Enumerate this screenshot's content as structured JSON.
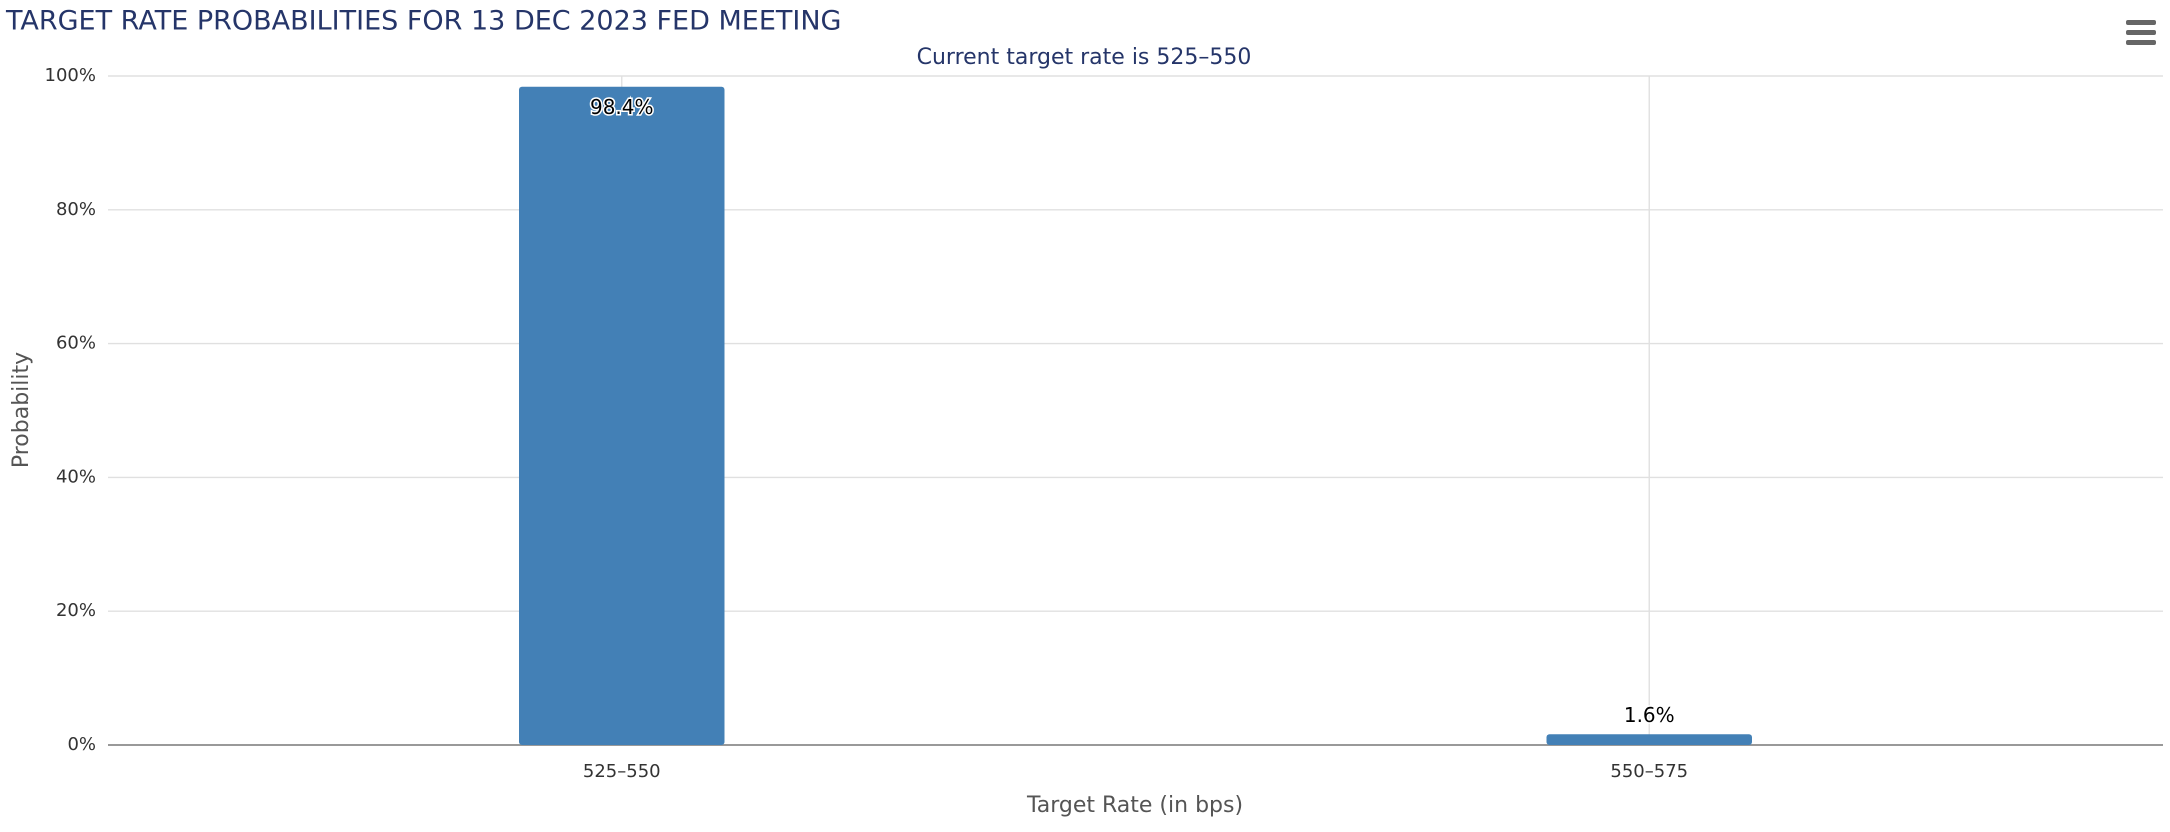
{
  "chart_data": {
    "type": "bar",
    "title": "TARGET RATE PROBABILITIES FOR 13 DEC 2023 FED MEETING",
    "subtitle": "Current target rate is 525–550",
    "x_label": "Target Rate (in bps)",
    "y_label": "Probability",
    "categories": [
      "525–550",
      "550–575"
    ],
    "values": [
      98.4,
      1.6
    ],
    "value_labels": [
      "98.4%",
      "1.6%"
    ],
    "color": "#4380b6",
    "ylim": [
      0,
      100
    ],
    "yticks": [
      {
        "value": 0,
        "label": "0%"
      },
      {
        "value": 20,
        "label": "20%"
      },
      {
        "value": 40,
        "label": "40%"
      },
      {
        "value": 60,
        "label": "60%"
      },
      {
        "value": 80,
        "label": "80%"
      },
      {
        "value": 100,
        "label": "100%"
      }
    ],
    "grid": true
  }
}
